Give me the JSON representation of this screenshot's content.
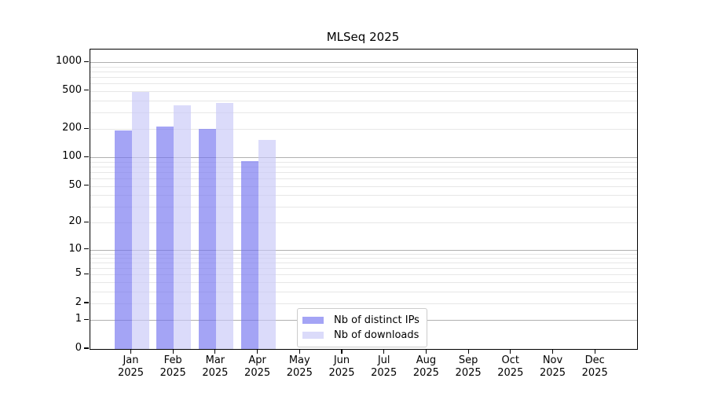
{
  "chart_data": {
    "type": "bar",
    "title": "MLSeq 2025",
    "year": "2025",
    "categories": [
      "Jan",
      "Feb",
      "Mar",
      "Apr",
      "May",
      "Jun",
      "Jul",
      "Aug",
      "Sep",
      "Oct",
      "Nov",
      "Dec"
    ],
    "series": [
      {
        "name": "Nb of distinct IPs",
        "color": "#7373f0",
        "alpha": 0.65,
        "values": [
          193,
          212,
          201,
          91,
          null,
          null,
          null,
          null,
          null,
          null,
          null,
          null
        ]
      },
      {
        "name": "Nb of downloads",
        "color": "#c8c8f8",
        "alpha": 0.65,
        "values": [
          487,
          352,
          376,
          154,
          null,
          null,
          null,
          null,
          null,
          null,
          null,
          null
        ]
      }
    ],
    "yscale": "log1p",
    "yticks": [
      0,
      1,
      2,
      5,
      10,
      20,
      50,
      100,
      200,
      500,
      1000
    ],
    "ylim": [
      0,
      1365
    ],
    "xlabel": "",
    "ylabel": "",
    "grid": "horizontal",
    "legend_position": "lower center",
    "colors": {
      "major_grid": "#b0b0b0",
      "minor_grid": "#e7e7e7",
      "axis": "#000000",
      "background": "#ffffff"
    }
  }
}
